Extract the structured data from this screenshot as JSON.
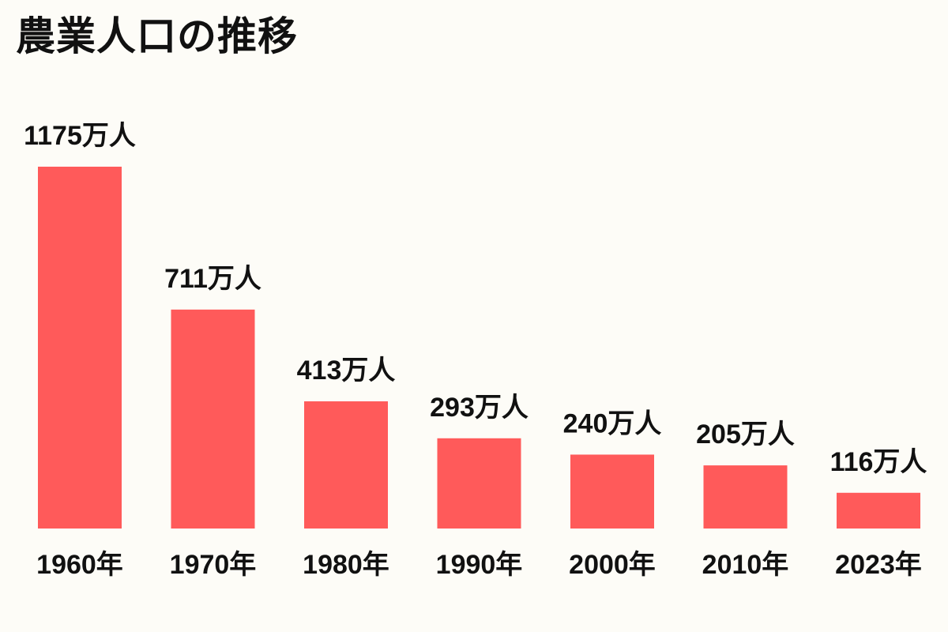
{
  "chart_data": {
    "type": "bar",
    "title": "農業人口の推移",
    "categories": [
      "1960年",
      "1970年",
      "1980年",
      "1990年",
      "2000年",
      "2010年",
      "2023年"
    ],
    "values": [
      1175,
      711,
      413,
      293,
      240,
      205,
      116
    ],
    "value_labels": [
      "1175万人",
      "711万人",
      "413万人",
      "293万人",
      "240万人",
      "205万人",
      "116万人"
    ],
    "unit": "万人",
    "xlabel": "",
    "ylabel": "",
    "ylim": [
      0,
      1175
    ],
    "grid": false,
    "legend": "none",
    "colors": {
      "bar": "#ff5a5a",
      "text": "#111111",
      "background": "#fdfcf7"
    }
  }
}
